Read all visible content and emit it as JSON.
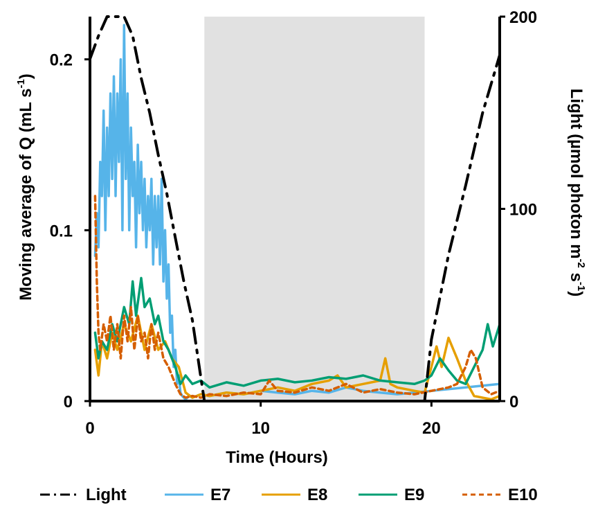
{
  "chart_data": {
    "type": "line",
    "xlabel": "Time (Hours)",
    "ylabel": "Moving average of Q (mL s",
    "ylabel_sup": "-1",
    "ylabel_end": ")",
    "y2label_parts": [
      "Light (µmol photon m",
      "-2",
      " s",
      "-1",
      ")"
    ],
    "xlim": [
      0,
      24
    ],
    "ylim": [
      0,
      0.225
    ],
    "y2lim": [
      0,
      200
    ],
    "xticks": [
      0,
      10,
      20
    ],
    "xtick_labels": [
      "0",
      "10",
      "20"
    ],
    "yticks": [
      0,
      0.1,
      0.2
    ],
    "ytick_labels": [
      "0",
      "0.1",
      "0.2"
    ],
    "y2ticks": [
      0,
      100,
      200
    ],
    "y2tick_labels": [
      "0",
      "100",
      "200"
    ],
    "shaded_region": [
      6.7,
      19.6
    ],
    "shade_color": "#e1e1e1",
    "legend_position": "bottom",
    "series": [
      {
        "name": "Light",
        "axis": "right",
        "color": "#000000",
        "dash": "dashdot",
        "x": [
          0,
          0.5,
          1,
          1.5,
          2,
          2.5,
          3,
          3.5,
          4,
          4.5,
          5,
          5.5,
          6,
          6.5,
          6.7,
          19.6,
          20,
          21,
          22,
          23,
          24
        ],
        "y": [
          178,
          190,
          200,
          200,
          200,
          190,
          168,
          150,
          128,
          108,
          85,
          62,
          42,
          12,
          0,
          0,
          32,
          76,
          112,
          150,
          180
        ]
      },
      {
        "name": "E7",
        "axis": "left",
        "color": "#56b4e9",
        "x": [
          0.3,
          0.4,
          0.5,
          0.6,
          0.7,
          0.8,
          0.9,
          1.0,
          1.1,
          1.2,
          1.3,
          1.4,
          1.5,
          1.6,
          1.7,
          1.8,
          1.9,
          2.0,
          2.1,
          2.2,
          2.3,
          2.4,
          2.5,
          2.6,
          2.7,
          2.8,
          2.9,
          3.0,
          3.1,
          3.2,
          3.3,
          3.4,
          3.5,
          3.6,
          3.7,
          3.8,
          3.9,
          4.0,
          4.1,
          4.2,
          4.3,
          4.4,
          4.5,
          4.6,
          4.7,
          4.8,
          4.9,
          5.0,
          5.1,
          5.2,
          5.3,
          5.4,
          5.5,
          5.6,
          5.8,
          6.0,
          6.5,
          7,
          8,
          9,
          10,
          11,
          12,
          13,
          14,
          15,
          16,
          17,
          18,
          19,
          20,
          21,
          22,
          23,
          24
        ],
        "y": [
          0.085,
          0.11,
          0.09,
          0.14,
          0.12,
          0.17,
          0.1,
          0.16,
          0.12,
          0.18,
          0.13,
          0.19,
          0.12,
          0.18,
          0.14,
          0.2,
          0.1,
          0.22,
          0.13,
          0.18,
          0.1,
          0.16,
          0.12,
          0.14,
          0.09,
          0.15,
          0.11,
          0.14,
          0.1,
          0.13,
          0.09,
          0.12,
          0.1,
          0.13,
          0.08,
          0.12,
          0.09,
          0.12,
          0.08,
          0.13,
          0.07,
          0.1,
          0.06,
          0.08,
          0.04,
          0.05,
          0.02,
          0.03,
          0.01,
          0.015,
          0.005,
          0.003,
          0.002,
          0.001,
          0.003,
          0.002,
          0.004,
          0.003,
          0.005,
          0.004,
          0.006,
          0.005,
          0.004,
          0.006,
          0.005,
          0.008,
          0.006,
          0.005,
          0.004,
          0.005,
          0.006,
          0.007,
          0.008,
          0.009,
          0.01
        ]
      },
      {
        "name": "E8",
        "axis": "left",
        "color": "#e69f00",
        "x": [
          0.3,
          0.5,
          0.7,
          1.0,
          1.3,
          1.6,
          2.0,
          2.4,
          2.8,
          3.2,
          3.6,
          4.0,
          4.4,
          4.8,
          5.2,
          5.6,
          6.0,
          6.5,
          7,
          8,
          9,
          10,
          11,
          12,
          13,
          14,
          14.5,
          15,
          16,
          17,
          17.3,
          17.6,
          18,
          19,
          19.6,
          20,
          20.3,
          20.6,
          21,
          21.5,
          22,
          22.5,
          23,
          23.5,
          24
        ],
        "y": [
          0.03,
          0.015,
          0.035,
          0.025,
          0.04,
          0.03,
          0.045,
          0.035,
          0.05,
          0.03,
          0.045,
          0.03,
          0.035,
          0.025,
          0.02,
          0.005,
          0.002,
          0.004,
          0.003,
          0.005,
          0.004,
          0.006,
          0.008,
          0.006,
          0.01,
          0.012,
          0.015,
          0.008,
          0.01,
          0.012,
          0.025,
          0.01,
          0.008,
          0.006,
          0.005,
          0.02,
          0.032,
          0.02,
          0.037,
          0.025,
          0.012,
          0.003,
          0.002,
          0.001,
          0.003
        ]
      },
      {
        "name": "E9",
        "axis": "left",
        "color": "#009e73",
        "x": [
          0.3,
          0.5,
          0.7,
          1.0,
          1.3,
          1.6,
          2.0,
          2.3,
          2.5,
          2.7,
          3.0,
          3.2,
          3.5,
          3.8,
          4.0,
          4.3,
          4.6,
          5.0,
          5.3,
          5.6,
          6.0,
          6.5,
          7,
          8,
          9,
          10,
          11,
          12,
          13,
          14,
          15,
          16,
          17,
          18,
          19,
          19.6,
          20,
          20.5,
          21,
          21.5,
          22,
          22.5,
          23,
          23.3,
          23.6,
          24
        ],
        "y": [
          0.04,
          0.025,
          0.035,
          0.03,
          0.045,
          0.035,
          0.055,
          0.045,
          0.07,
          0.05,
          0.072,
          0.055,
          0.06,
          0.045,
          0.05,
          0.035,
          0.03,
          0.02,
          0.01,
          0.015,
          0.01,
          0.012,
          0.008,
          0.011,
          0.009,
          0.012,
          0.013,
          0.011,
          0.012,
          0.014,
          0.013,
          0.015,
          0.012,
          0.011,
          0.01,
          0.012,
          0.015,
          0.025,
          0.018,
          0.012,
          0.01,
          0.02,
          0.03,
          0.045,
          0.032,
          0.045
        ]
      },
      {
        "name": "E10",
        "axis": "left",
        "color": "#d55e00",
        "dash": "dashed",
        "x": [
          0.3,
          0.4,
          0.5,
          0.6,
          0.8,
          1.0,
          1.2,
          1.4,
          1.6,
          1.8,
          2.0,
          2.2,
          2.4,
          2.6,
          2.8,
          3.0,
          3.2,
          3.4,
          3.6,
          3.8,
          4.0,
          4.3,
          4.6,
          5.0,
          5.3,
          5.6,
          6.0,
          6.5,
          7,
          8,
          9,
          10,
          10.5,
          11,
          12,
          13,
          14,
          15,
          16,
          17,
          18,
          19,
          20,
          21,
          21.5,
          22,
          22.3,
          22.6,
          23,
          23.5,
          24
        ],
        "y": [
          0.12,
          0.07,
          0.04,
          0.03,
          0.045,
          0.035,
          0.05,
          0.03,
          0.045,
          0.025,
          0.05,
          0.035,
          0.055,
          0.03,
          0.05,
          0.035,
          0.04,
          0.025,
          0.045,
          0.03,
          0.04,
          0.025,
          0.02,
          0.01,
          0.004,
          0.002,
          0.003,
          0.002,
          0.004,
          0.003,
          0.005,
          0.004,
          0.012,
          0.006,
          0.005,
          0.008,
          0.006,
          0.01,
          0.005,
          0.007,
          0.005,
          0.004,
          0.006,
          0.008,
          0.01,
          0.02,
          0.03,
          0.025,
          0.008,
          0.004,
          0.006
        ]
      }
    ]
  }
}
